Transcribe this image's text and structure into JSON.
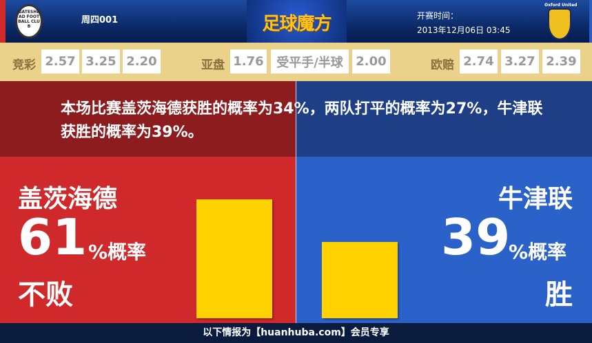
{
  "header": {
    "match_no": "周四001",
    "brand": "足球魔方",
    "kickoff_label": "开赛时间：",
    "kickoff_time": "2013年12月06日 03:45",
    "home_logo_text": "GATESHEAD FOOTBALL CLUB",
    "away_logo_text": "Oxford United"
  },
  "odds": {
    "jingcai": {
      "label": "竞彩",
      "values": [
        "2.57",
        "3.25",
        "2.20"
      ]
    },
    "asian": {
      "label": "亚盘",
      "values": [
        "1.76",
        "受平手/半球",
        "2.00"
      ]
    },
    "euro": {
      "label": "欧赔",
      "values": [
        "2.74",
        "3.27",
        "2.39"
      ]
    }
  },
  "summary": "本场比赛盖茨海德获胜的概率为34%，两队打平的概率为27%，牛津联获胜的概率为39%。",
  "home": {
    "name": "盖茨海德",
    "pct": "61",
    "pct_suffix": "%概率",
    "outcome": "不败",
    "value": 61
  },
  "away": {
    "name": "牛津联",
    "pct": "39",
    "pct_suffix": "%概率",
    "outcome": "胜",
    "value": 39
  },
  "footer": "以下情报为【huanhuba.com】会员专享",
  "colors": {
    "home": "#d0292b",
    "away": "#2b62c9",
    "bar": "#ffd200"
  }
}
